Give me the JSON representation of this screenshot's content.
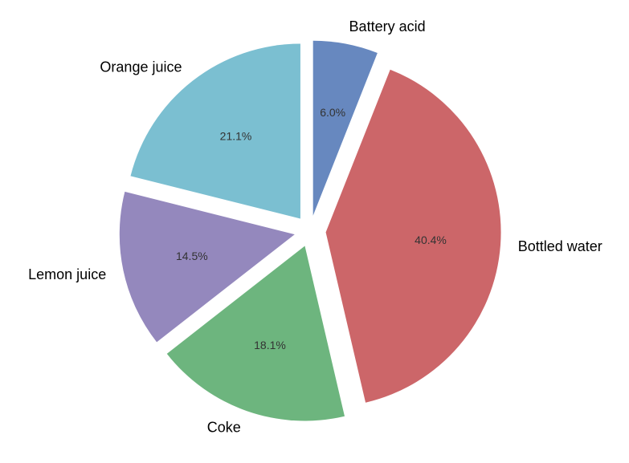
{
  "chart_data": {
    "type": "pie",
    "title": "",
    "start_angle_deg": 90,
    "direction": "clockwise",
    "slices": [
      {
        "label": "Battery acid",
        "value": 6.0,
        "pct_label": "6.0%",
        "color": "#6788bf",
        "exploded": true
      },
      {
        "label": "Bottled water",
        "value": 40.4,
        "pct_label": "40.4%",
        "color": "#cc6669",
        "exploded": true
      },
      {
        "label": "Coke",
        "value": 18.1,
        "pct_label": "18.1%",
        "color": "#6db57e",
        "exploded": true
      },
      {
        "label": "Lemon juice",
        "value": 14.5,
        "pct_label": "14.5%",
        "color": "#9488bd",
        "exploded": true
      },
      {
        "label": "Orange juice",
        "value": 21.1,
        "pct_label": "21.1%",
        "color": "#7bbfd1",
        "exploded": true
      }
    ]
  }
}
